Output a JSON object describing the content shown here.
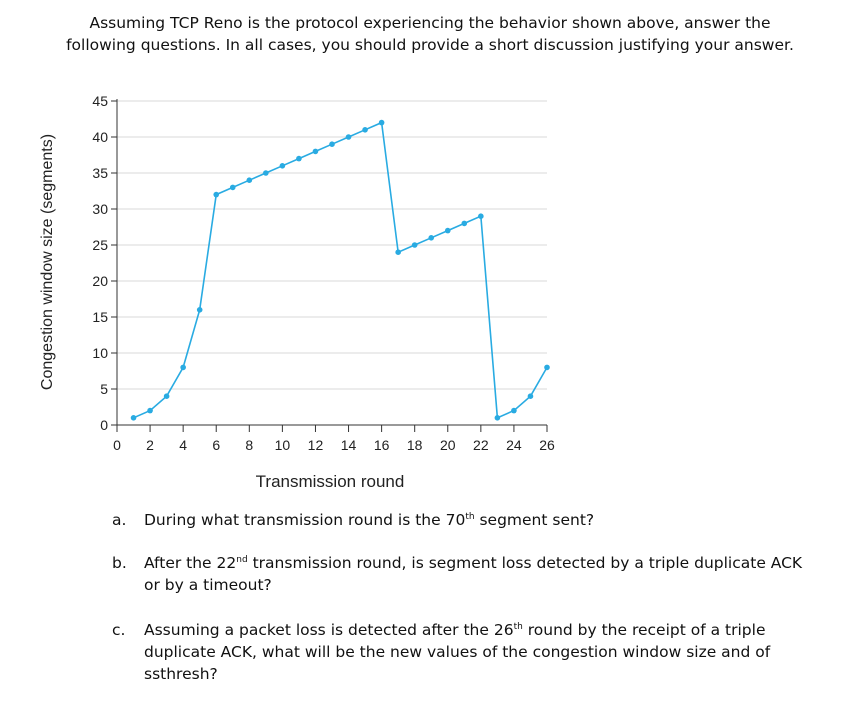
{
  "intro": "Assuming TCP Reno is the protocol experiencing the behavior shown above, answer the following questions. In all cases, you should provide a short discussion justifying your answer.",
  "chart_data": {
    "type": "line",
    "xlabel": "Transmission round",
    "ylabel": "Congestion window size (segments)",
    "xticks": [
      0,
      2,
      4,
      6,
      8,
      10,
      12,
      14,
      16,
      18,
      20,
      22,
      24,
      26
    ],
    "yticks": [
      0,
      5,
      10,
      15,
      20,
      25,
      30,
      35,
      40,
      45
    ],
    "xlim": [
      0,
      26
    ],
    "ylim": [
      0,
      45
    ],
    "grid": "horizontal",
    "series": [
      {
        "color": "#29abe2",
        "x": [
          1,
          2,
          3,
          4,
          5,
          6,
          7,
          8,
          9,
          10,
          11,
          12,
          13,
          14,
          15,
          16,
          17,
          18,
          19,
          20,
          21,
          22,
          23,
          24,
          25,
          26
        ],
        "y": [
          1,
          2,
          4,
          8,
          16,
          32,
          33,
          34,
          35,
          36,
          37,
          38,
          39,
          40,
          41,
          42,
          24,
          25,
          26,
          27,
          28,
          29,
          1,
          2,
          4,
          8
        ]
      }
    ]
  },
  "questions": [
    {
      "letter": "a.",
      "pre": "During what transmission round is the 70",
      "sup": "th",
      "post": " segment sent?"
    },
    {
      "letter": "b.",
      "pre": "After the 22",
      "sup": "nd",
      "post": " transmission round, is segment loss detected by a triple duplicate ACK or by a timeout?"
    },
    {
      "letter": "c.",
      "pre": "Assuming a packet loss is detected after the 26",
      "sup": "th",
      "post": " round by the receipt of a triple duplicate ACK, what will be the new values of the congestion window size and of ssthresh?"
    }
  ]
}
